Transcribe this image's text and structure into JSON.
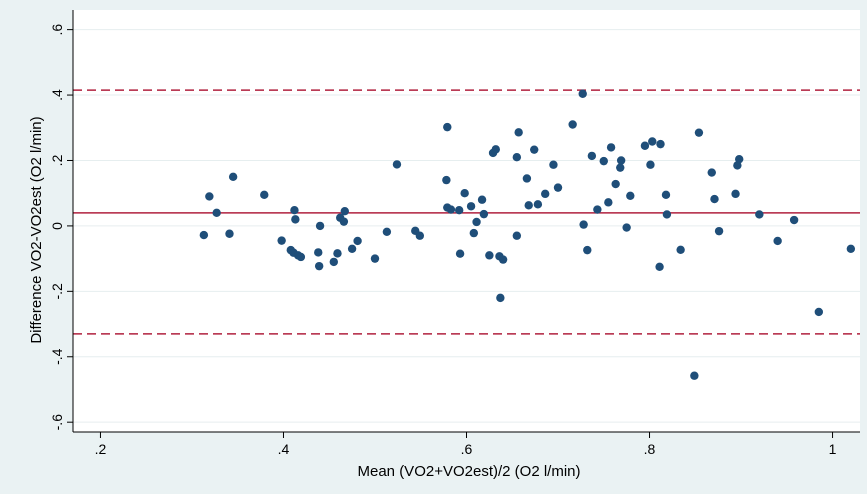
{
  "chart_data": {
    "type": "scatter",
    "title": "",
    "xlabel": "Mean (VO2+VO2est)/2 (O2 l/min)",
    "ylabel": "Difference VO2-VO2est (O2 l/min)",
    "xlim": [
      0.17,
      1.03
    ],
    "ylim": [
      -0.63,
      0.66
    ],
    "x_ticks": [
      {
        "value": 0.2,
        "label": ".2"
      },
      {
        "value": 0.4,
        "label": ".4"
      },
      {
        "value": 0.6,
        "label": ".6"
      },
      {
        "value": 0.8,
        "label": ".8"
      },
      {
        "value": 1.0,
        "label": "1"
      }
    ],
    "y_ticks": [
      {
        "value": -0.6,
        "label": "-.6"
      },
      {
        "value": -0.4,
        "label": "-.4"
      },
      {
        "value": -0.2,
        "label": "-.2"
      },
      {
        "value": 0,
        "label": "0"
      },
      {
        "value": 0.2,
        "label": ".2"
      },
      {
        "value": 0.4,
        "label": ".4"
      },
      {
        "value": 0.6,
        "label": ".6"
      }
    ],
    "grid": true,
    "reference_lines": [
      {
        "value": 0.04,
        "style": "solid",
        "color": "#b0213f"
      },
      {
        "value": 0.415,
        "style": "dashed",
        "color": "#b0213f"
      },
      {
        "value": -0.33,
        "style": "dashed",
        "color": "#b0213f"
      }
    ],
    "marker_color": "#1f4e79",
    "points": [
      [
        0.313,
        -0.028
      ],
      [
        0.319,
        0.09
      ],
      [
        0.327,
        0.04
      ],
      [
        0.341,
        -0.024
      ],
      [
        0.345,
        0.15
      ],
      [
        0.379,
        0.095
      ],
      [
        0.398,
        -0.045
      ],
      [
        0.408,
        -0.074
      ],
      [
        0.411,
        -0.082
      ],
      [
        0.412,
        0.048
      ],
      [
        0.413,
        0.02
      ],
      [
        0.416,
        -0.09
      ],
      [
        0.419,
        -0.095
      ],
      [
        0.438,
        -0.081
      ],
      [
        0.439,
        -0.123
      ],
      [
        0.44,
        0.0
      ],
      [
        0.455,
        -0.11
      ],
      [
        0.459,
        -0.084
      ],
      [
        0.462,
        0.025
      ],
      [
        0.466,
        0.013
      ],
      [
        0.467,
        0.045
      ],
      [
        0.475,
        -0.07
      ],
      [
        0.481,
        -0.046
      ],
      [
        0.5,
        -0.1
      ],
      [
        0.513,
        -0.018
      ],
      [
        0.524,
        0.188
      ],
      [
        0.544,
        -0.015
      ],
      [
        0.549,
        -0.03
      ],
      [
        0.578,
        0.14
      ],
      [
        0.579,
        0.302
      ],
      [
        0.579,
        0.056
      ],
      [
        0.583,
        0.05
      ],
      [
        0.592,
        0.048
      ],
      [
        0.593,
        -0.085
      ],
      [
        0.598,
        0.1
      ],
      [
        0.605,
        0.06
      ],
      [
        0.608,
        -0.022
      ],
      [
        0.611,
        0.012
      ],
      [
        0.617,
        0.08
      ],
      [
        0.619,
        0.036
      ],
      [
        0.625,
        -0.09
      ],
      [
        0.629,
        0.223
      ],
      [
        0.632,
        0.234
      ],
      [
        0.636,
        -0.093
      ],
      [
        0.637,
        -0.22
      ],
      [
        0.64,
        -0.103
      ],
      [
        0.655,
        0.21
      ],
      [
        0.655,
        -0.03
      ],
      [
        0.657,
        0.286
      ],
      [
        0.666,
        0.145
      ],
      [
        0.668,
        0.063
      ],
      [
        0.674,
        0.233
      ],
      [
        0.678,
        0.066
      ],
      [
        0.686,
        0.098
      ],
      [
        0.695,
        0.187
      ],
      [
        0.7,
        0.117
      ],
      [
        0.716,
        0.31
      ],
      [
        0.727,
        0.404
      ],
      [
        0.728,
        0.004
      ],
      [
        0.732,
        -0.074
      ],
      [
        0.737,
        0.214
      ],
      [
        0.743,
        0.05
      ],
      [
        0.75,
        0.198
      ],
      [
        0.755,
        0.072
      ],
      [
        0.758,
        0.24
      ],
      [
        0.763,
        0.128
      ],
      [
        0.768,
        0.178
      ],
      [
        0.769,
        0.2
      ],
      [
        0.775,
        -0.005
      ],
      [
        0.779,
        0.092
      ],
      [
        0.795,
        0.245
      ],
      [
        0.801,
        0.187
      ],
      [
        0.803,
        0.258
      ],
      [
        0.811,
        -0.125
      ],
      [
        0.812,
        0.25
      ],
      [
        0.818,
        0.095
      ],
      [
        0.819,
        0.035
      ],
      [
        0.834,
        -0.073
      ],
      [
        0.849,
        -0.458
      ],
      [
        0.854,
        0.285
      ],
      [
        0.868,
        0.163
      ],
      [
        0.871,
        0.082
      ],
      [
        0.876,
        -0.016
      ],
      [
        0.894,
        0.098
      ],
      [
        0.896,
        0.185
      ],
      [
        0.898,
        0.204
      ],
      [
        0.92,
        0.035
      ],
      [
        0.94,
        -0.046
      ],
      [
        0.958,
        0.018
      ],
      [
        0.985,
        -0.263
      ],
      [
        1.02,
        -0.07
      ]
    ]
  }
}
